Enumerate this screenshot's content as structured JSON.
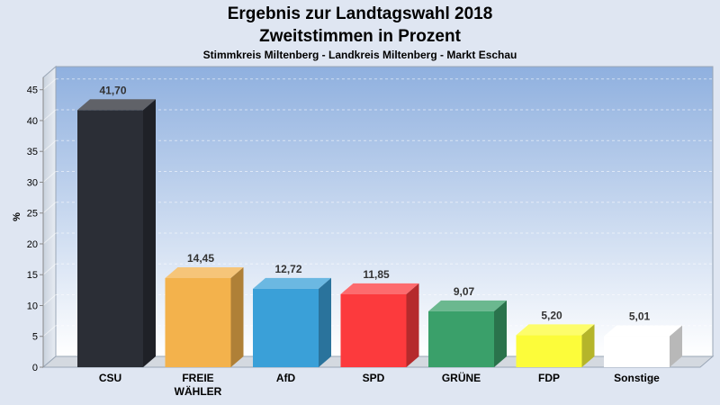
{
  "chart_data": {
    "type": "bar",
    "title": "Ergebnis zur Landtagswahl 2018",
    "subtitle": "Zweitstimmen in Prozent",
    "subtitle2": "Stimmkreis Miltenberg - Landkreis Miltenberg - Markt Eschau",
    "ylabel": "%",
    "xlabel": "",
    "ylim": [
      0,
      47
    ],
    "yticks": [
      0,
      5,
      10,
      15,
      20,
      25,
      30,
      35,
      40,
      45
    ],
    "grid": true,
    "categories": [
      [
        "CSU"
      ],
      [
        "FREIE",
        "WÄHLER"
      ],
      [
        "AfD"
      ],
      [
        "SPD"
      ],
      [
        "GRÜNE"
      ],
      [
        "FDP"
      ],
      [
        "Sonstige"
      ]
    ],
    "values": [
      41.7,
      14.45,
      12.72,
      11.85,
      9.07,
      5.2,
      5.01
    ],
    "value_labels": [
      "41,70",
      "14,45",
      "12,72",
      "11,85",
      "9,07",
      "5,20",
      "5,01"
    ],
    "colors": [
      "#2b2e36",
      "#f3b24c",
      "#3aa0d8",
      "#fc3a3d",
      "#3aa06a",
      "#fcfc3a",
      "#ffffff"
    ]
  }
}
